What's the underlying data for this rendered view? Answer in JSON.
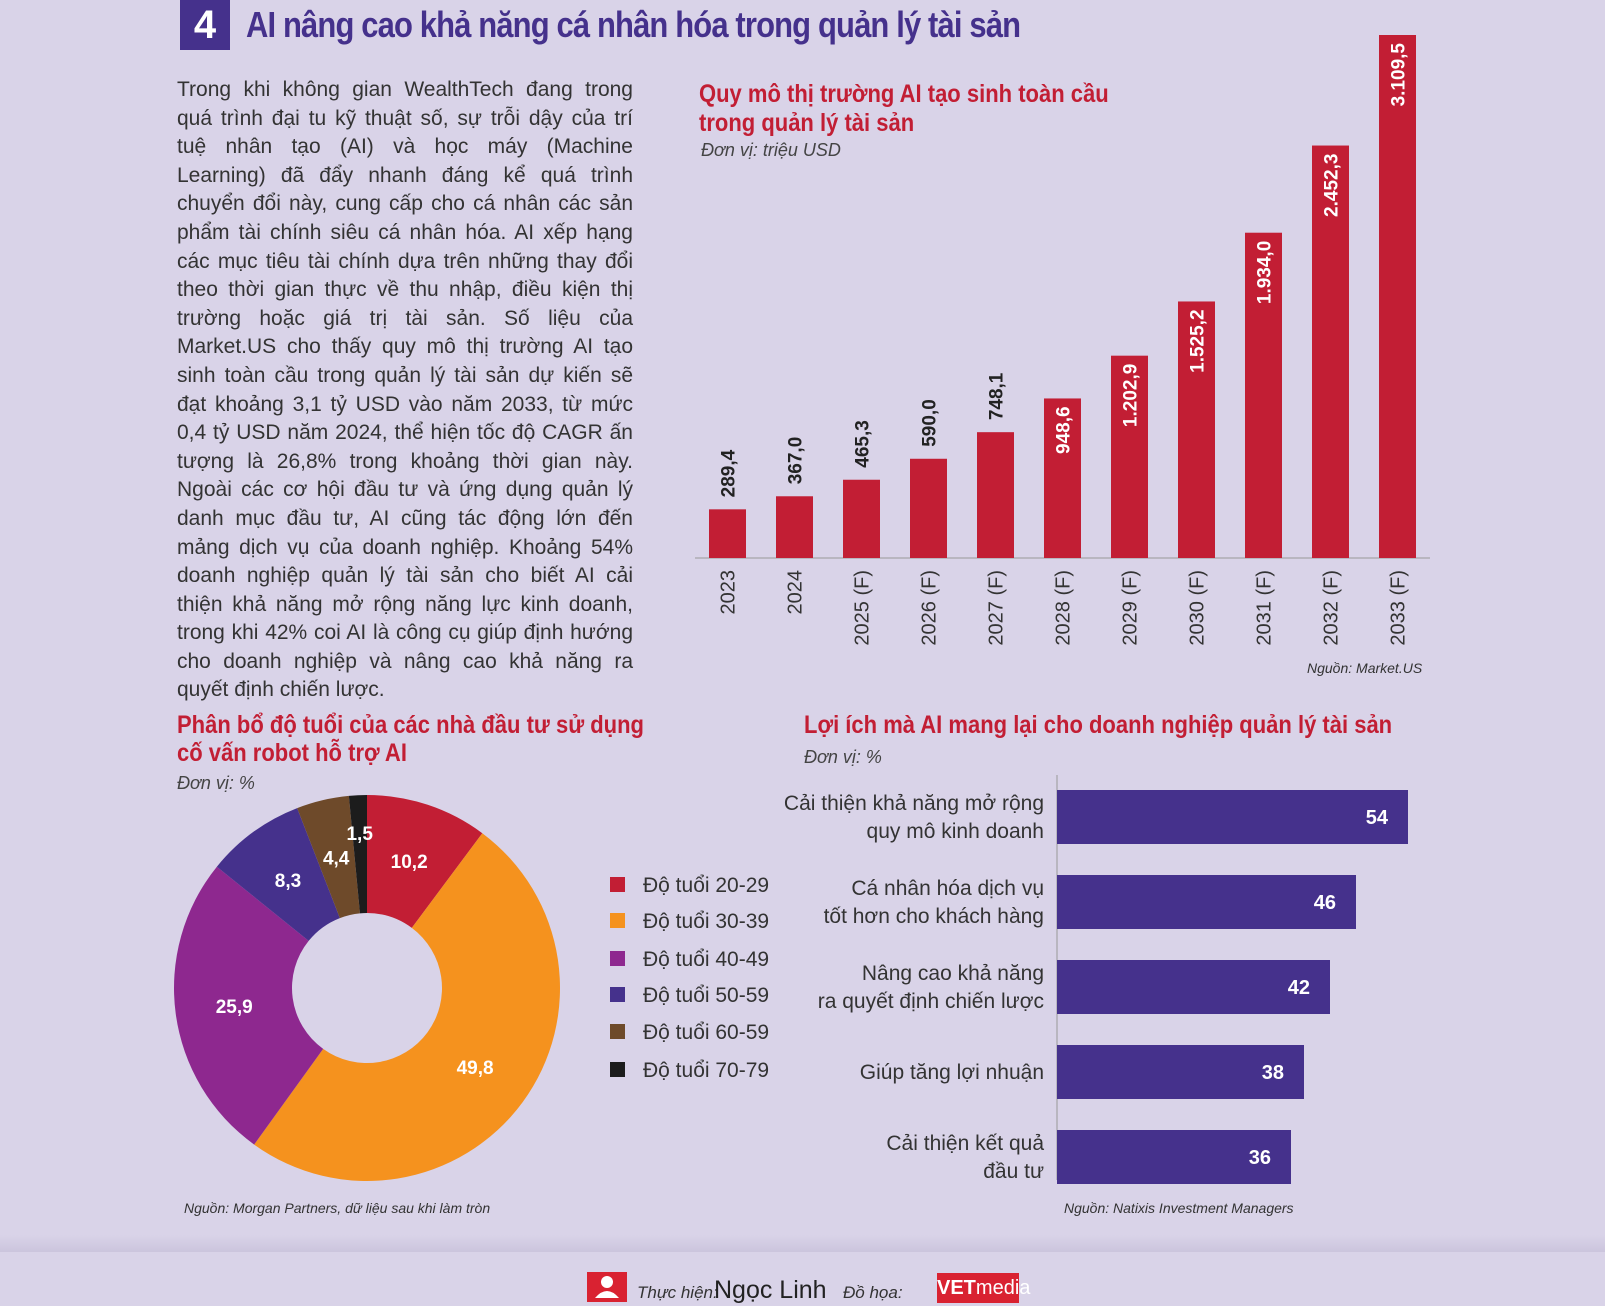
{
  "header": {
    "number": "4",
    "title": "AI nâng cao khả năng cá nhân hóa trong quản lý tài sản"
  },
  "body_text": "Trong khi không gian WealthTech đang trong quá trình đại tu kỹ thuật số, sự trỗi dậy của trí tuệ nhân tạo (AI) và học máy (Machine Learning) đã đẩy nhanh đáng kể quá trình chuyển đổi này, cung cấp cho cá nhân các sản phẩm tài chính siêu cá nhân hóa. AI xếp hạng các mục tiêu tài chính dựa trên những thay đổi theo thời gian thực về thu nhập, điều kiện thị trường hoặc giá trị tài sản. Số liệu của Market.US cho thấy quy mô thị trường AI tạo sinh toàn cầu trong quản lý tài sản dự kiến sẽ đạt khoảng 3,1 tỷ USD vào năm 2033, từ mức 0,4 tỷ USD năm 2024, thể hiện tốc độ CAGR ấn tượng là 26,8% trong khoảng thời gian này. Ngoài các cơ hội đầu tư và ứng dụng quản lý danh mục đầu tư, AI cũng tác động lớn đến mảng dịch vụ của doanh nghiệp. Khoảng 54% doanh nghiệp quản lý tài sản cho biết AI cải thiện khả năng mở rộng năng lực kinh doanh, trong khi 42% coi AI là công cụ giúp định hướng cho doanh nghiệp và nâng cao khả năng ra quyết định chiến lược.",
  "chart_data": [
    {
      "type": "bar",
      "title_line1": "Quy mô thị trường AI tạo sinh toàn cầu",
      "title_line2": "trong quản lý tài sản",
      "unit": "Đơn vị: triệu USD",
      "source": "Nguồn: Market.US",
      "categories": [
        "2023",
        "2024",
        "2025 (F)",
        "2026 (F)",
        "2027 (F)",
        "2028 (F)",
        "2029 (F)",
        "2030 (F)",
        "2031 (F)",
        "2032 (F)",
        "2033 (F)"
      ],
      "values": [
        289.4,
        367.0,
        465.3,
        590.0,
        748.1,
        948.6,
        1202.9,
        1525.2,
        1934.0,
        2452.3,
        3109.5
      ],
      "labels": [
        "289,4",
        "367,0",
        "465,3",
        "590,0",
        "748,1",
        "948,6",
        "1.202,9",
        "1.525,2",
        "1.934,0",
        "2.452,3",
        "3.109,5"
      ],
      "ylim": [
        0,
        3109.5
      ],
      "bar_color": "#c21e34"
    },
    {
      "type": "pie",
      "title_line1": "Phân bổ độ tuổi của các nhà đầu tư sử dụng",
      "title_line2": "cố vấn robot hỗ trợ AI",
      "unit": "Đơn vị: %",
      "source": "Nguồn: Morgan Partners, dữ liệu sau khi làm tròn",
      "slices": [
        {
          "name": "Độ tuổi 20-29",
          "value": 10.2,
          "label": "10,2",
          "color": "#c21e34"
        },
        {
          "name": "Độ tuổi 30-39",
          "value": 49.8,
          "label": "49,8",
          "color": "#f5921e"
        },
        {
          "name": "Độ tuổi 40-49",
          "value": 25.9,
          "label": "25,9",
          "color": "#8e288f"
        },
        {
          "name": "Độ tuổi 50-59",
          "value": 8.3,
          "label": "8,3",
          "color": "#45318c"
        },
        {
          "name": "Độ tuổi 60-59",
          "value": 4.4,
          "label": "4,4",
          "color": "#6e4a2a"
        },
        {
          "name": "Độ tuổi 70-79",
          "value": 1.5,
          "label": "1,5",
          "color": "#1c1c1c"
        }
      ]
    },
    {
      "type": "bar",
      "orientation": "horizontal",
      "title": "Lợi ích mà AI mang lại cho doanh nghiệp quản lý tài sản",
      "unit": "Đơn vị: %",
      "source": "Nguồn: Natixis Investment Managers",
      "categories": [
        [
          "Cải thiện khả năng mở rộng",
          "quy mô kinh doanh"
        ],
        [
          "Cá nhân hóa dịch vụ",
          "tốt hơn cho khách hàng"
        ],
        [
          "Nâng cao khả năng",
          "ra quyết định chiến lược"
        ],
        [
          "Giúp tăng lợi nhuận"
        ],
        [
          "Cải thiện kết quả",
          "đầu tư"
        ]
      ],
      "values": [
        54,
        46,
        42,
        38,
        36
      ],
      "bar_color": "#45318c"
    }
  ],
  "footer": {
    "made_by_label": "Thực hiện:",
    "author": "Ngọc Linh",
    "graphics_label": "Đồ họa:",
    "logo_bold": "VET",
    "logo_light": "media"
  }
}
